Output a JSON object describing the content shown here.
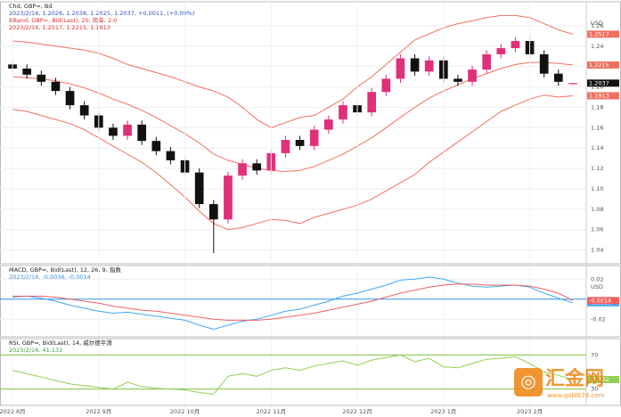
{
  "chart_data": [
    {
      "type": "candlestick",
      "header": [
        {
          "text": "Chd, GBP=, Bd",
          "color": "#222"
        },
        {
          "text": "2023/2/16, 1.2026, 1.2038, 1.2025, 1.2037, +0.0011, (+0.09%)",
          "color": "#3050c0"
        },
        {
          "text": "BBand, GBP=, Bid(Last), 20, 简单, 2.0",
          "color": "#e03030"
        },
        {
          "text": "2023/2/16, 1.2517, 1.2215, 1.1913",
          "color": "#e03030"
        }
      ],
      "unit": "USD",
      "categories": [
        "2022 8月",
        null,
        null,
        null,
        null,
        null,
        "2022 9月",
        null,
        null,
        null,
        null,
        null,
        "2022 10月",
        null,
        null,
        null,
        null,
        null,
        "2022 11月",
        null,
        null,
        null,
        null,
        null,
        "2022 12月",
        null,
        null,
        null,
        null,
        null,
        "2023 1月",
        null,
        null,
        null,
        null,
        null,
        "2023 2月",
        null,
        null,
        null
      ],
      "open": [
        1.222,
        1.218,
        1.212,
        1.205,
        1.196,
        1.182,
        1.172,
        1.16,
        1.152,
        1.163,
        1.147,
        1.137,
        1.128,
        1.116,
        1.085,
        1.07,
        1.113,
        1.125,
        1.118,
        1.135,
        1.148,
        1.142,
        1.158,
        1.168,
        1.182,
        1.175,
        1.195,
        1.208,
        1.228,
        1.215,
        1.226,
        1.208,
        1.205,
        1.217,
        1.232,
        1.238,
        1.245,
        1.232,
        1.213,
        1.2026
      ],
      "high": [
        1.226,
        1.222,
        1.216,
        1.209,
        1.2,
        1.186,
        1.176,
        1.164,
        1.167,
        1.167,
        1.151,
        1.141,
        1.132,
        1.12,
        1.089,
        1.117,
        1.129,
        1.129,
        1.139,
        1.152,
        1.152,
        1.162,
        1.172,
        1.186,
        1.186,
        1.199,
        1.212,
        1.232,
        1.232,
        1.23,
        1.23,
        1.212,
        1.221,
        1.236,
        1.242,
        1.249,
        1.249,
        1.236,
        1.217,
        1.2038
      ],
      "low": [
        1.214,
        1.208,
        1.201,
        1.192,
        1.178,
        1.168,
        1.156,
        1.148,
        1.148,
        1.143,
        1.133,
        1.124,
        1.112,
        1.081,
        1.037,
        1.066,
        1.109,
        1.114,
        1.114,
        1.131,
        1.138,
        1.138,
        1.154,
        1.164,
        1.171,
        1.171,
        1.191,
        1.204,
        1.211,
        1.211,
        1.204,
        1.201,
        1.201,
        1.213,
        1.228,
        1.234,
        1.228,
        1.209,
        1.201,
        1.2025
      ],
      "close": [
        1.218,
        1.212,
        1.205,
        1.196,
        1.182,
        1.172,
        1.16,
        1.152,
        1.163,
        1.147,
        1.137,
        1.128,
        1.116,
        1.085,
        1.07,
        1.113,
        1.125,
        1.118,
        1.135,
        1.148,
        1.142,
        1.158,
        1.168,
        1.182,
        1.175,
        1.195,
        1.208,
        1.228,
        1.215,
        1.226,
        1.208,
        1.205,
        1.217,
        1.232,
        1.238,
        1.245,
        1.232,
        1.213,
        1.205,
        1.2037
      ],
      "up_color": "#e0307a",
      "down_color": "#111111",
      "series": [
        {
          "color": "#f07060",
          "values": [
            1.245,
            1.244,
            1.242,
            1.24,
            1.238,
            1.236,
            1.233,
            1.228,
            1.222,
            1.218,
            1.214,
            1.21,
            1.205,
            1.2,
            1.196,
            1.19,
            1.18,
            1.168,
            1.16,
            1.165,
            1.17,
            1.172,
            1.18,
            1.188,
            1.2,
            1.21,
            1.222,
            1.234,
            1.246,
            1.252,
            1.258,
            1.262,
            1.265,
            1.268,
            1.27,
            1.27,
            1.268,
            1.262,
            1.256,
            1.2517
          ]
        },
        {
          "color": "#f07060",
          "values": [
            1.21,
            1.209,
            1.208,
            1.206,
            1.203,
            1.199,
            1.194,
            1.188,
            1.183,
            1.177,
            1.17,
            1.162,
            1.154,
            1.145,
            1.134,
            1.128,
            1.124,
            1.12,
            1.118,
            1.117,
            1.118,
            1.122,
            1.128,
            1.134,
            1.142,
            1.15,
            1.16,
            1.17,
            1.18,
            1.189,
            1.196,
            1.202,
            1.208,
            1.213,
            1.218,
            1.222,
            1.224,
            1.224,
            1.223,
            1.2215
          ]
        },
        {
          "color": "#f07060",
          "values": [
            1.178,
            1.176,
            1.172,
            1.168,
            1.164,
            1.158,
            1.15,
            1.142,
            1.134,
            1.126,
            1.116,
            1.104,
            1.092,
            1.078,
            1.066,
            1.06,
            1.062,
            1.066,
            1.07,
            1.069,
            1.066,
            1.072,
            1.076,
            1.08,
            1.084,
            1.09,
            1.098,
            1.106,
            1.114,
            1.126,
            1.136,
            1.146,
            1.156,
            1.166,
            1.176,
            1.182,
            1.188,
            1.192,
            1.19,
            1.1913
          ]
        }
      ],
      "ylim": [
        1.03,
        1.28
      ],
      "yticks": [
        1.04,
        1.06,
        1.08,
        {
          "value": 1.1,
          "label": "1.10"
        },
        1.12,
        1.14,
        1.16,
        1.18,
        {
          "value": 1.2,
          "label": "1.20"
        },
        1.22,
        1.24,
        1.26
      ]
    },
    {
      "type": "line",
      "header": [
        {
          "text": "MACD, GBP=, Bid(Last), 12, 26, 9, 指数",
          "color": "#222"
        },
        {
          "text": "2023/2/16, -0.0036, -0.0014",
          "color": "#3090e0"
        }
      ],
      "unit": "USD",
      "series": [
        {
          "color": "#40a8f0",
          "values": [
            0.002,
            0.003,
            0.001,
            -0.002,
            -0.006,
            -0.009,
            -0.012,
            -0.014,
            -0.013,
            -0.015,
            -0.017,
            -0.019,
            -0.021,
            -0.026,
            -0.03,
            -0.026,
            -0.022,
            -0.02,
            -0.016,
            -0.012,
            -0.01,
            -0.006,
            -0.002,
            0.003,
            0.006,
            0.01,
            0.014,
            0.019,
            0.02,
            0.022,
            0.02,
            0.016,
            0.013,
            0.012,
            0.013,
            0.014,
            0.012,
            0.006,
            0.001,
            -0.0036
          ]
        },
        {
          "color": "#f06060",
          "values": [
            0.003,
            0.003,
            0.003,
            0.002,
            0.0,
            -0.002,
            -0.004,
            -0.007,
            -0.009,
            -0.011,
            -0.012,
            -0.014,
            -0.016,
            -0.018,
            -0.02,
            -0.021,
            -0.021,
            -0.021,
            -0.02,
            -0.018,
            -0.016,
            -0.014,
            -0.011,
            -0.008,
            -0.005,
            -0.002,
            0.002,
            0.006,
            0.009,
            0.012,
            0.014,
            0.015,
            0.015,
            0.014,
            0.014,
            0.014,
            0.013,
            0.01,
            0.006,
            -0.0014
          ]
        }
      ],
      "ylim": [
        -0.034,
        0.03
      ],
      "yticks": [
        -0.02,
        0,
        0.02
      ],
      "zero_line_color": "#3090e0"
    },
    {
      "type": "line",
      "header": [
        {
          "text": "RSI, GBP=, Bid(Last), 14, 威尔德平滑",
          "color": "#222"
        },
        {
          "text": "2023/2/16, 41.132",
          "color": "#40a040"
        }
      ],
      "series": [
        {
          "color": "#90d050",
          "values": [
            52,
            48,
            44,
            40,
            36,
            34,
            32,
            30,
            38,
            33,
            31,
            30,
            29,
            26,
            24,
            45,
            48,
            45,
            52,
            55,
            52,
            57,
            60,
            63,
            58,
            64,
            67,
            70,
            62,
            66,
            56,
            55,
            60,
            65,
            66,
            68,
            60,
            50,
            46,
            41.132
          ]
        }
      ],
      "ylim": [
        15,
        85
      ],
      "yticks": [
        30,
        70
      ],
      "tick_line_color": "#80c040"
    }
  ],
  "watermark": {
    "title": "汇金网",
    "url": "www.gold678.com"
  }
}
